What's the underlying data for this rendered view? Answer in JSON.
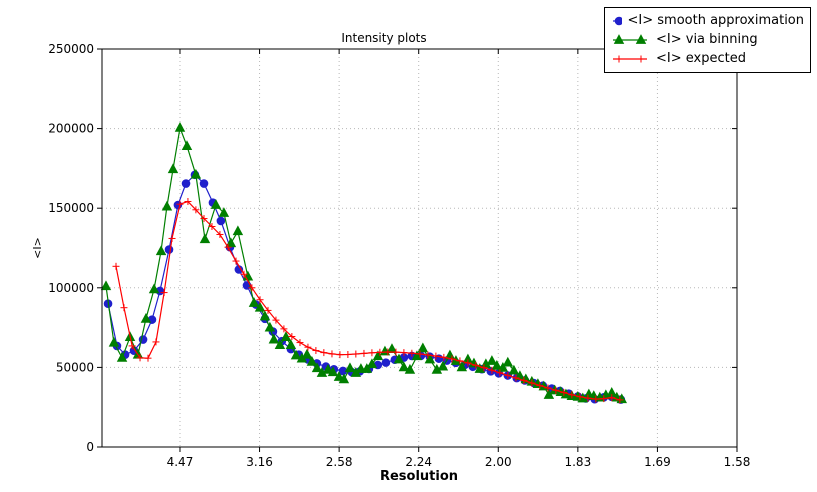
{
  "chart_data": {
    "type": "line",
    "title": "Intensity plots",
    "xlabel": "Resolution",
    "ylabel": "<I>",
    "grid": true,
    "grid_style": "dotted",
    "grid_color": "#b8b8b8",
    "legend_position": "upper right",
    "x_axis": {
      "note": "axis linear in 1/d^2; tick labels are d-spacing in Angstrom",
      "range": [
        0.001,
        0.4
      ],
      "ticks": [
        {
          "pos": 0.05,
          "label": "4.47"
        },
        {
          "pos": 0.1,
          "label": "3.16"
        },
        {
          "pos": 0.15,
          "label": "2.58"
        },
        {
          "pos": 0.2,
          "label": "2.24"
        },
        {
          "pos": 0.25,
          "label": "2.00"
        },
        {
          "pos": 0.3,
          "label": "1.83"
        },
        {
          "pos": 0.35,
          "label": "1.69"
        },
        {
          "pos": 0.4,
          "label": "1.58"
        }
      ]
    },
    "y_axis": {
      "range": [
        0,
        250000
      ],
      "ticks": [
        {
          "pos": 0,
          "label": "0"
        },
        {
          "pos": 50000,
          "label": "50000"
        },
        {
          "pos": 100000,
          "label": "100000"
        },
        {
          "pos": 150000,
          "label": "150000"
        },
        {
          "pos": 200000,
          "label": "200000"
        },
        {
          "pos": 250000,
          "label": "250000"
        }
      ]
    },
    "series": [
      {
        "name": "<I> smooth approximation",
        "color": "#2020cc",
        "marker": "circle",
        "x": [
          0.0048,
          0.0104,
          0.0155,
          0.0211,
          0.0268,
          0.0324,
          0.0374,
          0.0431,
          0.0487,
          0.0538,
          0.0594,
          0.0651,
          0.0707,
          0.0757,
          0.0814,
          0.087,
          0.0921,
          0.0977,
          0.1034,
          0.1084,
          0.114,
          0.1197,
          0.1247,
          0.1304,
          0.136,
          0.1417,
          0.1467,
          0.1524,
          0.158,
          0.163,
          0.1687,
          0.1743,
          0.1794,
          0.185,
          0.1907,
          0.1957,
          0.2014,
          0.207,
          0.2127,
          0.2177,
          0.2233,
          0.229,
          0.234,
          0.2397,
          0.2453,
          0.2503,
          0.256,
          0.2616,
          0.2667,
          0.2723,
          0.278,
          0.2836,
          0.2887,
          0.2943,
          0.3,
          0.305,
          0.3106,
          0.3163,
          0.3213,
          0.327
        ],
        "y": [
          90000,
          63500,
          58000,
          60500,
          67500,
          80000,
          98000,
          124000,
          152000,
          165500,
          171000,
          165500,
          153500,
          142000,
          125500,
          111500,
          101500,
          89500,
          80500,
          72500,
          66500,
          61500,
          58000,
          55000,
          52500,
          50500,
          48800,
          47800,
          47000,
          47500,
          49000,
          51500,
          53000,
          54800,
          56200,
          57200,
          57300,
          56700,
          55500,
          54300,
          52900,
          51600,
          50400,
          48900,
          47500,
          46300,
          44900,
          43300,
          41800,
          40200,
          38500,
          36700,
          35200,
          33500,
          31800,
          30500,
          30000,
          31200,
          31500,
          29800
        ]
      },
      {
        "name": "<I> via binning",
        "color": "#007f00",
        "marker": "triangle",
        "x": [
          0.0035,
          0.0085,
          0.0136,
          0.0186,
          0.0236,
          0.0286,
          0.0337,
          0.0381,
          0.0418,
          0.0456,
          0.05,
          0.0544,
          0.06,
          0.0657,
          0.0726,
          0.0776,
          0.082,
          0.0864,
          0.0927,
          0.0965,
          0.1003,
          0.1034,
          0.1065,
          0.109,
          0.1128,
          0.1166,
          0.1197,
          0.1229,
          0.1266,
          0.1298,
          0.1329,
          0.1361,
          0.1392,
          0.143,
          0.1461,
          0.1499,
          0.153,
          0.1568,
          0.1605,
          0.1637,
          0.1674,
          0.1706,
          0.1744,
          0.1788,
          0.1832,
          0.1876,
          0.1907,
          0.1945,
          0.1989,
          0.2026,
          0.207,
          0.2114,
          0.2152,
          0.2196,
          0.2234,
          0.2271,
          0.2309,
          0.2347,
          0.2384,
          0.2422,
          0.246,
          0.2491,
          0.2529,
          0.256,
          0.2598,
          0.2636,
          0.2673,
          0.2711,
          0.2749,
          0.2786,
          0.2818,
          0.2855,
          0.2893,
          0.2925,
          0.2962,
          0.3,
          0.3031,
          0.3069,
          0.31,
          0.3138,
          0.3176,
          0.3213,
          0.3245,
          0.3276
        ],
        "y": [
          101000,
          65500,
          56000,
          69000,
          58000,
          80500,
          99000,
          123000,
          151000,
          174500,
          200500,
          189000,
          171000,
          130500,
          152000,
          147000,
          128000,
          135500,
          107000,
          90500,
          87500,
          82000,
          75000,
          67500,
          64000,
          69000,
          64000,
          57500,
          55500,
          58000,
          53500,
          49500,
          46500,
          48500,
          47000,
          44000,
          42500,
          49500,
          46500,
          49000,
          49000,
          52000,
          57000,
          60000,
          61500,
          55000,
          50000,
          48500,
          57000,
          62000,
          55000,
          48500,
          50500,
          57500,
          54000,
          50000,
          55000,
          52500,
          49000,
          52000,
          54000,
          51000,
          49700,
          53000,
          48000,
          44500,
          42500,
          41000,
          39500,
          38000,
          32700,
          35500,
          34500,
          33000,
          32000,
          31500,
          30500,
          33000,
          32000,
          31000,
          32500,
          34000,
          31000,
          30000
        ]
      },
      {
        "name": "<I> expected",
        "color": "#ff0000",
        "marker": "plus",
        "x": [
          0.0098,
          0.0148,
          0.0199,
          0.0249,
          0.0299,
          0.0349,
          0.04,
          0.045,
          0.05,
          0.055,
          0.06,
          0.0651,
          0.0701,
          0.0751,
          0.0802,
          0.0852,
          0.0902,
          0.0952,
          0.1003,
          0.1053,
          0.1103,
          0.1153,
          0.1203,
          0.1254,
          0.1304,
          0.1354,
          0.1404,
          0.1455,
          0.1505,
          0.1555,
          0.1605,
          0.1656,
          0.1706,
          0.1756,
          0.1806,
          0.1857,
          0.1907,
          0.1957,
          0.2008,
          0.2058,
          0.2108,
          0.2158,
          0.2209,
          0.2259,
          0.2309,
          0.2359,
          0.241,
          0.246,
          0.251,
          0.256,
          0.2611,
          0.2661,
          0.2711,
          0.2761,
          0.2812,
          0.2862,
          0.2912,
          0.2962,
          0.3013,
          0.3063,
          0.3113,
          0.3163,
          0.3213,
          0.3264
        ],
        "y": [
          113500,
          87500,
          63500,
          56000,
          55800,
          66000,
          97000,
          131000,
          152500,
          154200,
          149000,
          143500,
          138500,
          133500,
          125500,
          116800,
          108500,
          100000,
          92500,
          85800,
          79700,
          74200,
          69400,
          65600,
          62700,
          60600,
          59300,
          58500,
          58000,
          58100,
          58400,
          58800,
          59200,
          59500,
          59700,
          59600,
          59300,
          58900,
          58400,
          57800,
          57100,
          56300,
          55300,
          54100,
          52800,
          51300,
          49800,
          48200,
          46600,
          45000,
          43400,
          41800,
          40200,
          38600,
          37100,
          35600,
          34200,
          32800,
          31600,
          30700,
          30100,
          30400,
          31000,
          29600
        ]
      }
    ]
  }
}
